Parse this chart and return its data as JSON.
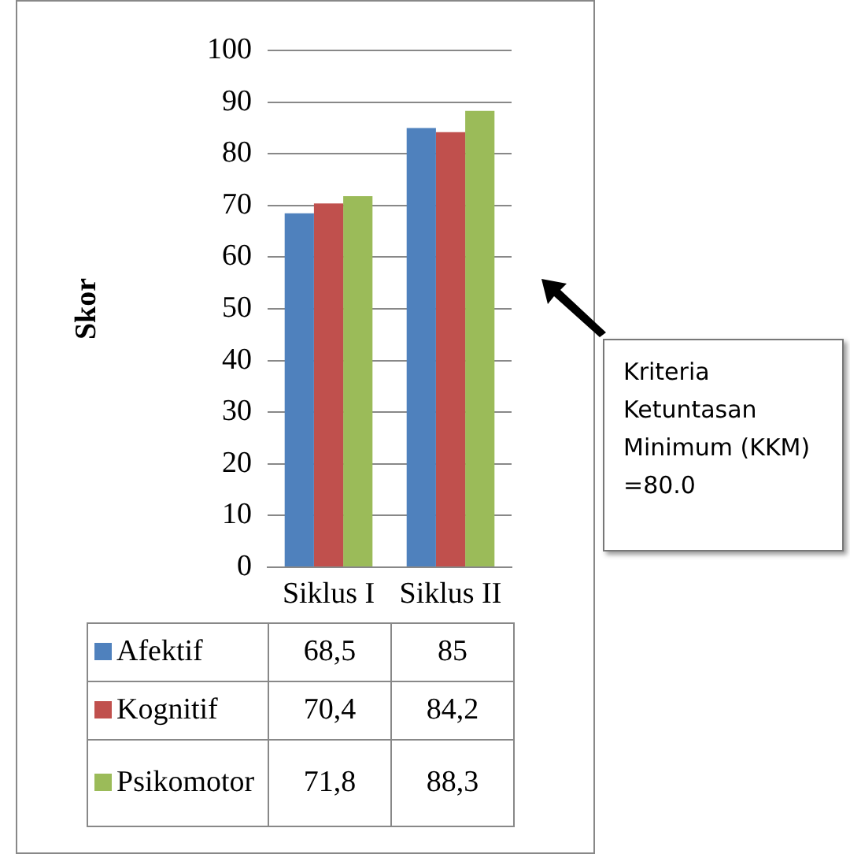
{
  "chart_data": {
    "type": "bar",
    "ylabel": "Skor",
    "categories": [
      "Siklus I",
      "Siklus II"
    ],
    "series": [
      {
        "name": "Afektif",
        "color": "#4f81bd",
        "values": [
          68.5,
          85
        ],
        "value_labels": [
          "68,5",
          "85"
        ]
      },
      {
        "name": "Kognitif",
        "color": "#c0504d",
        "values": [
          70.4,
          84.2
        ],
        "value_labels": [
          "70,4",
          "84,2"
        ]
      },
      {
        "name": "Psikomotor",
        "color": "#9bbb59",
        "values": [
          71.8,
          88.3
        ],
        "value_labels": [
          "71,8",
          "88,3"
        ]
      }
    ],
    "ylim": [
      0,
      100
    ],
    "yticks": [
      0,
      10,
      20,
      30,
      40,
      50,
      60,
      70,
      80,
      90,
      100
    ],
    "grid": "y",
    "legend": "bottom",
    "annotations": [
      "Kriteria Ketuntasan Minimum (KKM) =80.0"
    ]
  }
}
